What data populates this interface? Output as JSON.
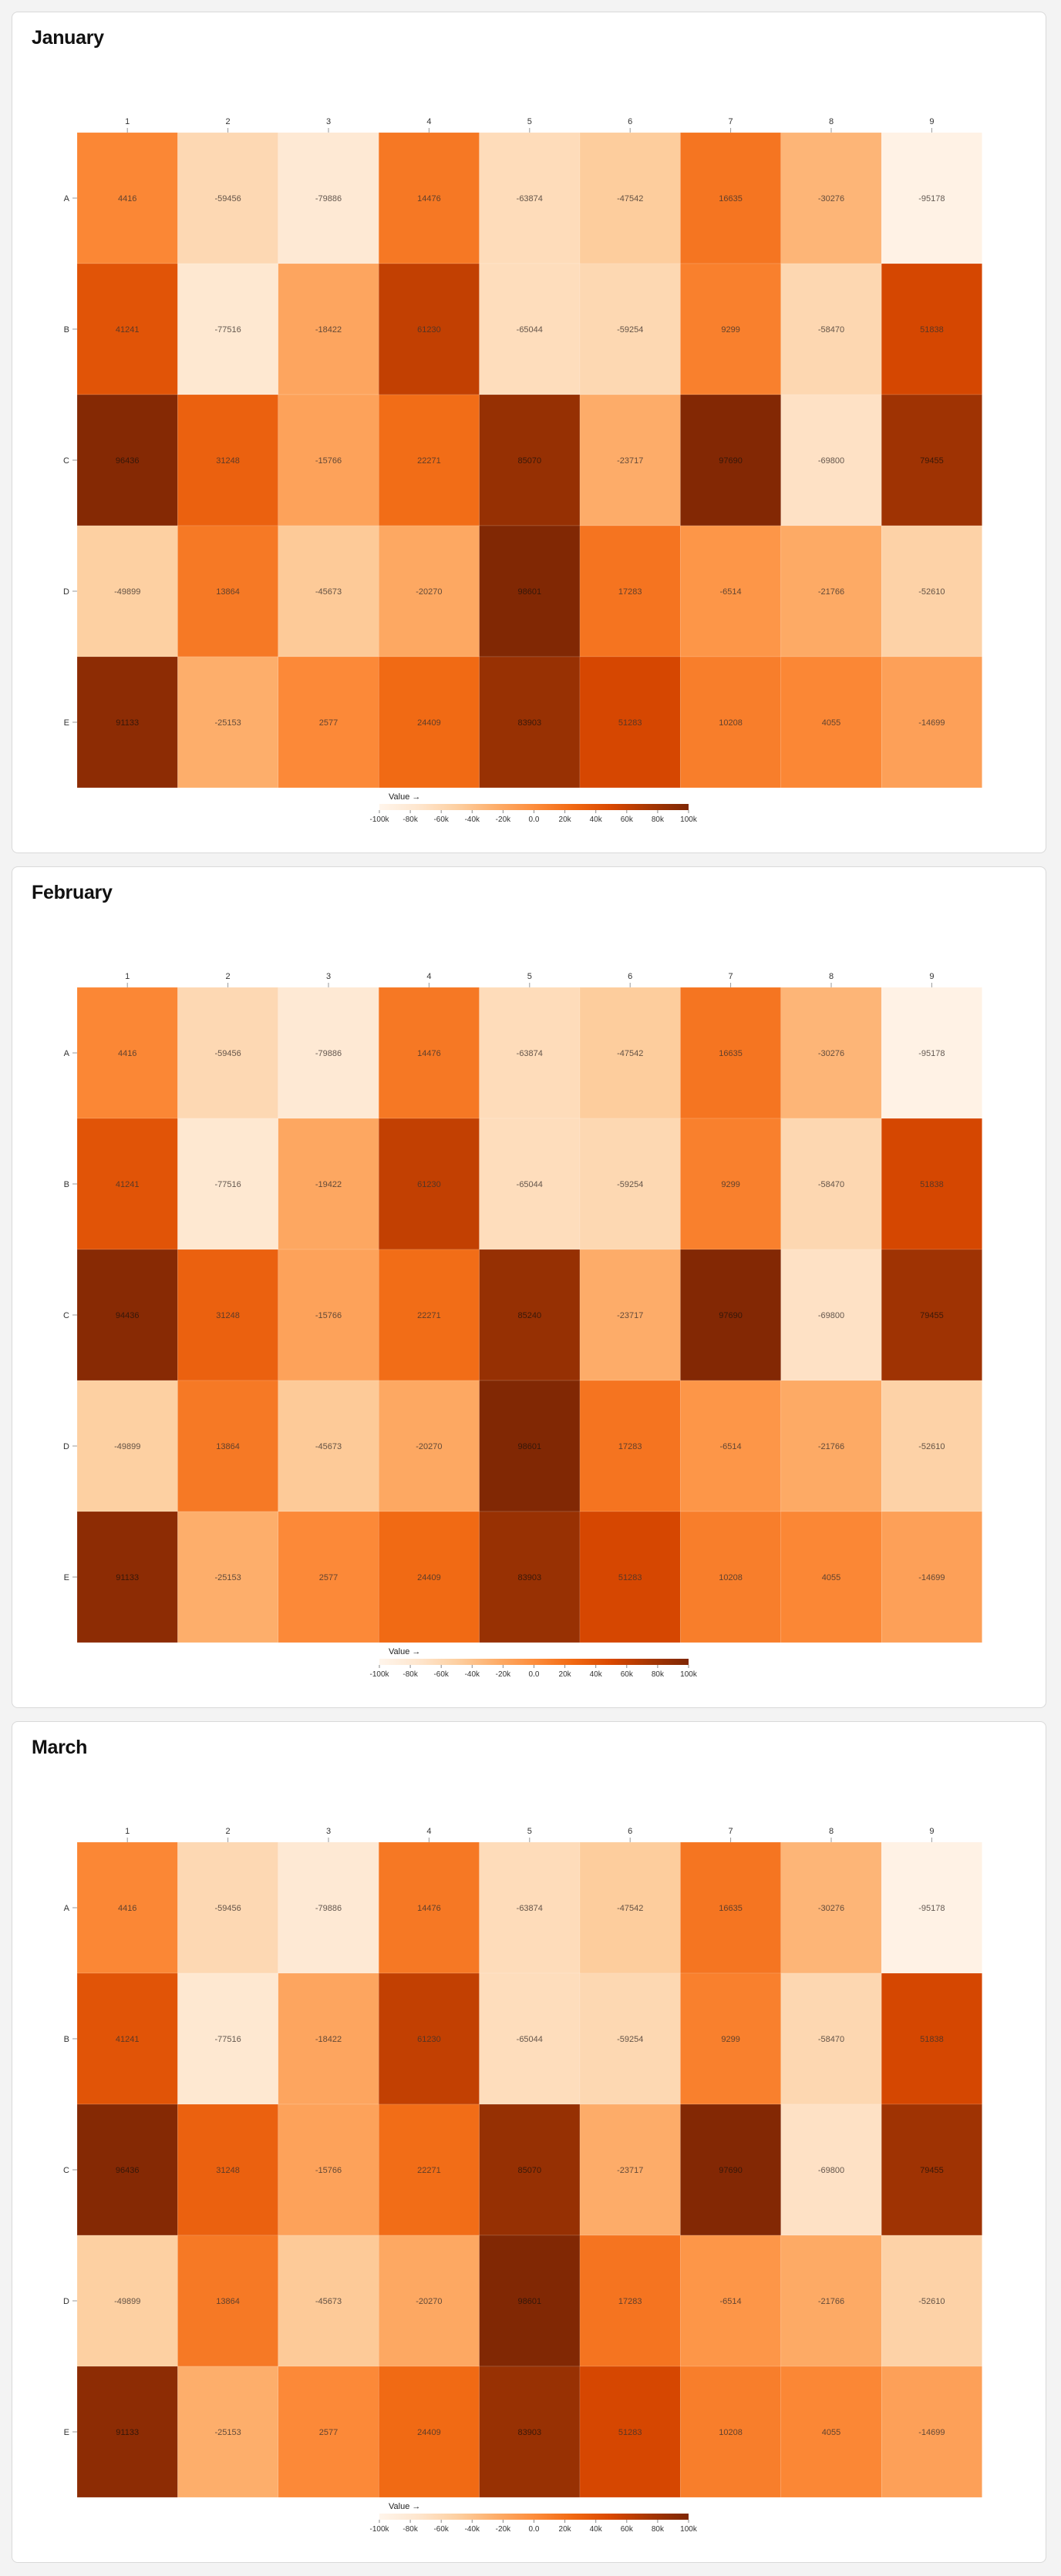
{
  "chart_data": [
    {
      "type": "heatmap",
      "title": "January",
      "x_categories": [
        "1",
        "2",
        "3",
        "4",
        "5",
        "6",
        "7",
        "8",
        "9"
      ],
      "y_categories": [
        "A",
        "B",
        "C",
        "D",
        "E"
      ],
      "values": [
        [
          4416,
          -59456,
          -79886,
          14476,
          -63874,
          -47542,
          16635,
          -30276,
          -95178
        ],
        [
          41241,
          -77516,
          -18422,
          61230,
          -65044,
          -59254,
          9299,
          -58470,
          51838
        ],
        [
          96436,
          31248,
          -15766,
          22271,
          85070,
          -23717,
          97690,
          -69800,
          79455
        ],
        [
          -49899,
          13864,
          -45673,
          -20270,
          98601,
          17283,
          -6514,
          -21766,
          -52610
        ],
        [
          91133,
          -25153,
          2577,
          24409,
          83903,
          51283,
          10208,
          4055,
          -14699
        ]
      ],
      "color_scale": {
        "label": "Value →",
        "domain": [
          -100000,
          100000
        ],
        "ticks": [
          "-100k",
          "-80k",
          "-60k",
          "-40k",
          "-20k",
          "0.0",
          "20k",
          "40k",
          "60k",
          "80k",
          "100k"
        ],
        "colors": [
          "#fff5eb",
          "#fee6ce",
          "#fdd0a2",
          "#fdae6b",
          "#fd8d3c",
          "#f16913",
          "#d94801",
          "#a63603",
          "#7f2704"
        ]
      }
    },
    {
      "type": "heatmap",
      "title": "February",
      "x_categories": [
        "1",
        "2",
        "3",
        "4",
        "5",
        "6",
        "7",
        "8",
        "9"
      ],
      "y_categories": [
        "A",
        "B",
        "C",
        "D",
        "E"
      ],
      "values": [
        [
          4416,
          -59456,
          -79886,
          14476,
          -63874,
          -47542,
          16635,
          -30276,
          -95178
        ],
        [
          41241,
          -77516,
          -19422,
          61230,
          -65044,
          -59254,
          9299,
          -58470,
          51838
        ],
        [
          94436,
          31248,
          -15766,
          22271,
          85240,
          -23717,
          97690,
          -69800,
          79455
        ],
        [
          -49899,
          13864,
          -45673,
          -20270,
          98601,
          17283,
          -6514,
          -21766,
          -52610
        ],
        [
          91133,
          -25153,
          2577,
          24409,
          83903,
          51283,
          10208,
          4055,
          -14699
        ]
      ],
      "color_scale": {
        "label": "Value →",
        "domain": [
          -100000,
          100000
        ],
        "ticks": [
          "-100k",
          "-80k",
          "-60k",
          "-40k",
          "-20k",
          "0.0",
          "20k",
          "40k",
          "60k",
          "80k",
          "100k"
        ],
        "colors": [
          "#fff5eb",
          "#fee6ce",
          "#fdd0a2",
          "#fdae6b",
          "#fd8d3c",
          "#f16913",
          "#d94801",
          "#a63603",
          "#7f2704"
        ]
      }
    },
    {
      "type": "heatmap",
      "title": "March",
      "x_categories": [
        "1",
        "2",
        "3",
        "4",
        "5",
        "6",
        "7",
        "8",
        "9"
      ],
      "y_categories": [
        "A",
        "B",
        "C",
        "D",
        "E"
      ],
      "values": [
        [
          4416,
          -59456,
          -79886,
          14476,
          -63874,
          -47542,
          16635,
          -30276,
          -95178
        ],
        [
          41241,
          -77516,
          -18422,
          61230,
          -65044,
          -59254,
          9299,
          -58470,
          51838
        ],
        [
          96436,
          31248,
          -15766,
          22271,
          85070,
          -23717,
          97690,
          -69800,
          79455
        ],
        [
          -49899,
          13864,
          -45673,
          -20270,
          98601,
          17283,
          -6514,
          -21766,
          -52610
        ],
        [
          91133,
          -25153,
          2577,
          24409,
          83903,
          51283,
          10208,
          4055,
          -14699
        ]
      ],
      "color_scale": {
        "label": "Value →",
        "domain": [
          -100000,
          100000
        ],
        "ticks": [
          "-100k",
          "-80k",
          "-60k",
          "-40k",
          "-20k",
          "0.0",
          "20k",
          "40k",
          "60k",
          "80k",
          "100k"
        ],
        "colors": [
          "#fff5eb",
          "#fee6ce",
          "#fdd0a2",
          "#fdae6b",
          "#fd8d3c",
          "#f16913",
          "#d94801",
          "#a63603",
          "#7f2704"
        ]
      }
    }
  ]
}
